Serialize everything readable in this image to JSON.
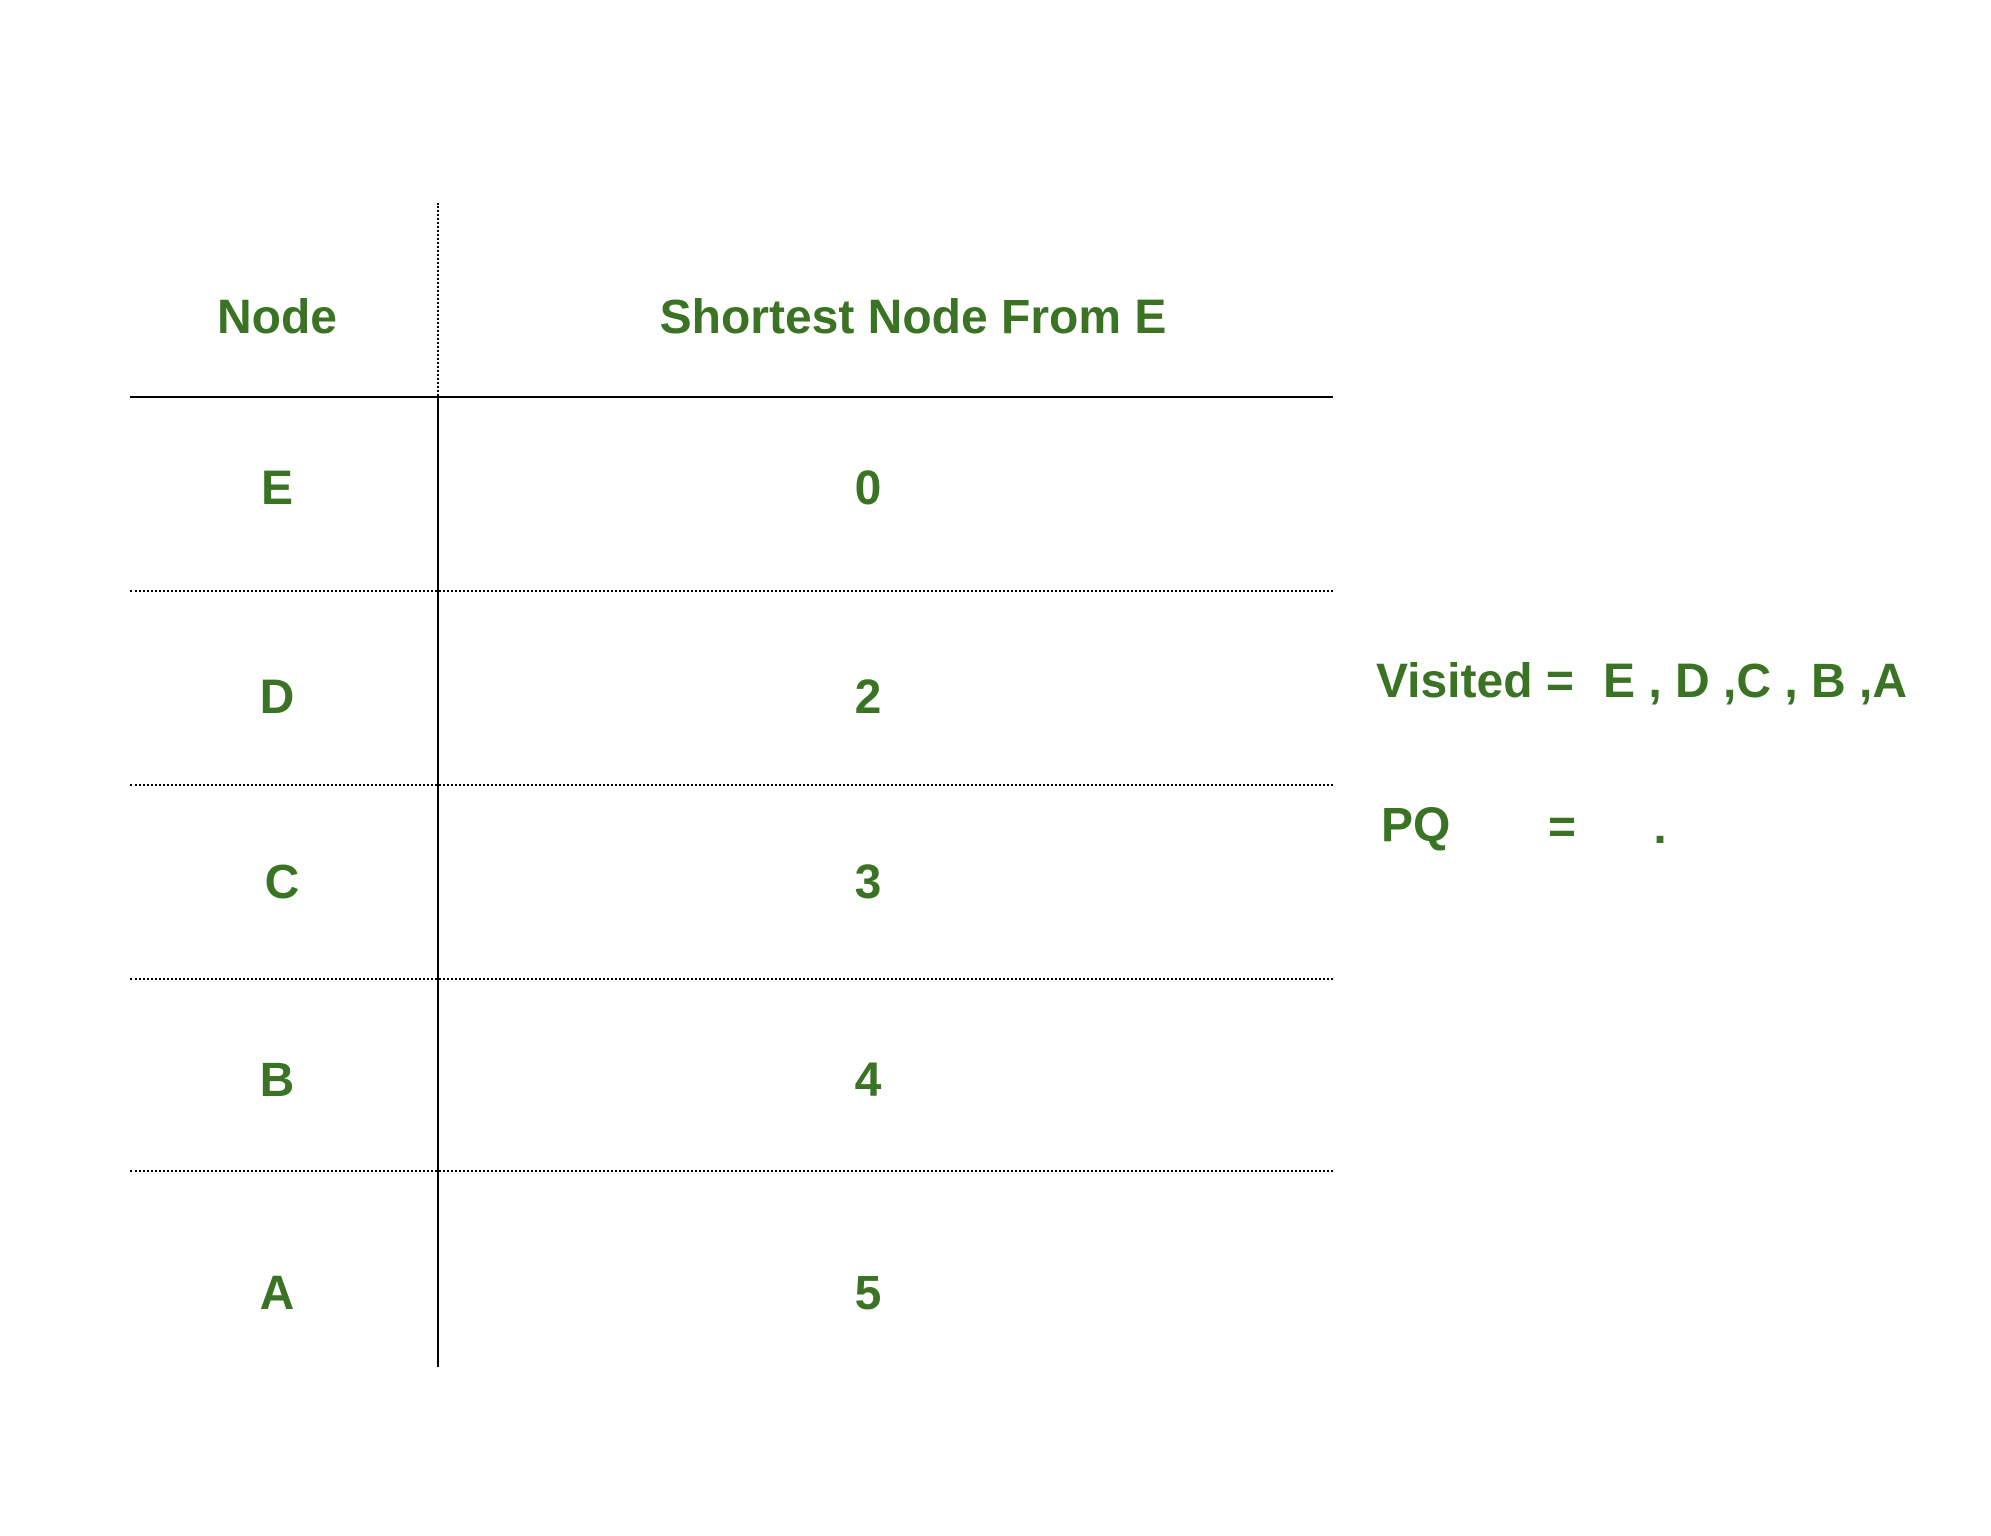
{
  "table": {
    "headers": {
      "node": "Node",
      "distance": "Shortest Node From E"
    },
    "rows": [
      {
        "node": "E",
        "distance": "0"
      },
      {
        "node": "D",
        "distance": "2"
      },
      {
        "node": "C",
        "distance": "3"
      },
      {
        "node": "B",
        "distance": "4"
      },
      {
        "node": "A",
        "distance": "5"
      }
    ]
  },
  "side": {
    "visited_label": "Visited =",
    "visited_value": "E , D ,C , B ,A",
    "pq_label": "PQ",
    "pq_equals": "=",
    "pq_value": "."
  },
  "colors": {
    "text": "#3a7323",
    "lines": "#000000"
  }
}
